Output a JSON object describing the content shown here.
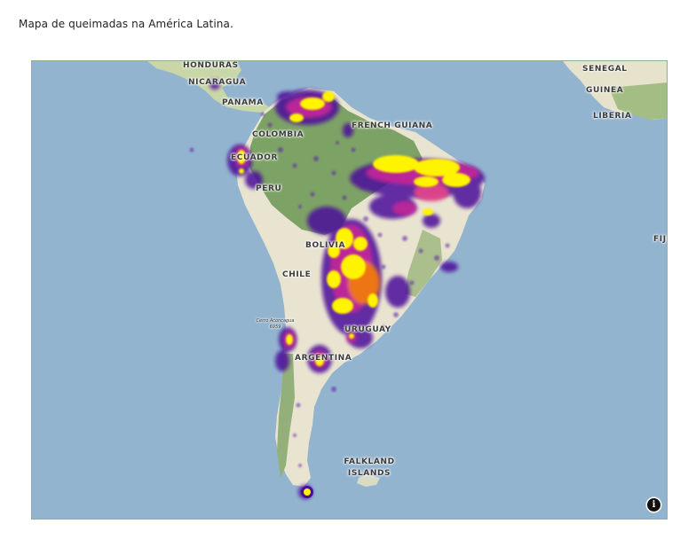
{
  "caption": "Mapa de queimadas na América Latina.",
  "map": {
    "type": "heatmap",
    "colors": {
      "ocean": "#93b4cf",
      "land_forest": "#7da266",
      "land_dry": "#e8e4d0",
      "heat_low": "#3b0a8a",
      "heat_mid": "#c0259a",
      "heat_high": "#f5790f",
      "heat_max": "#fff400"
    },
    "labels": {
      "honduras": "HONDURAS",
      "nicaragua": "NICARAGUA",
      "panama": "PANAMA",
      "colombia": "COLOMBIA",
      "ecuador": "ECUADOR",
      "peru": "PERU",
      "bolivia": "BOLIVIA",
      "chile": "CHILE",
      "argentina": "ARGENTINA",
      "uruguay": "URUGUAY",
      "french_guiana": "FRENCH GUIANA",
      "senegal": "SENEGAL",
      "guinea": "GUINEA",
      "liberia": "LIBERIA",
      "fiji": "FIJI",
      "falkland": "FALKLAND ISLANDS",
      "aconcagua": "Cerro Aconcagua 6959"
    },
    "info_icon": "info-icon"
  }
}
